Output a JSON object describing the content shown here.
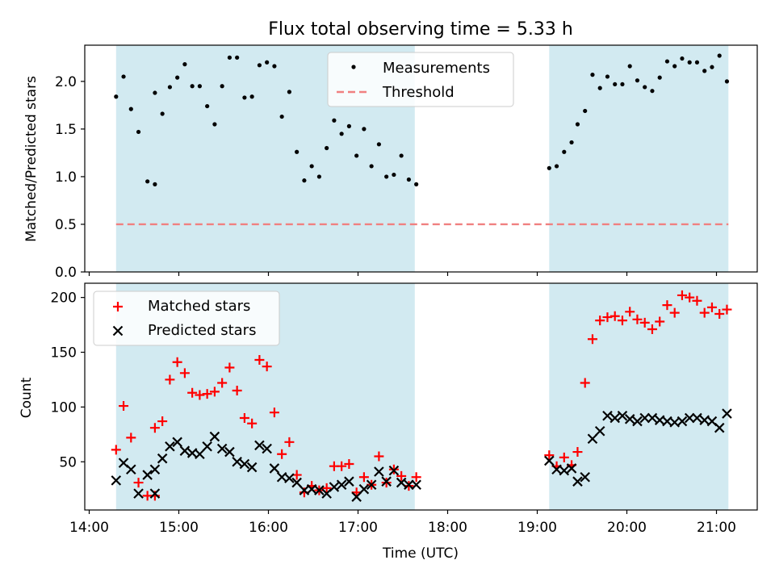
{
  "colors": {
    "shade": "#add8e6",
    "threshold": "#f08080",
    "matched": "#ff0000",
    "predicted": "#000000",
    "measurement": "#000000"
  },
  "chart_data": [
    {
      "type": "scatter",
      "title": "Flux total observing time = 5.33 h",
      "xlabel": "",
      "ylabel": "Matched/Predicted stars",
      "ylim": [
        0,
        2.38
      ],
      "yticks": [
        "0.0",
        "0.5",
        "1.0",
        "1.5",
        "2.0"
      ],
      "legend_position": "top-center",
      "shaded_intervals": [
        [
          "14:18",
          "17:38"
        ],
        [
          "19:08",
          "21:08"
        ]
      ],
      "threshold": {
        "name": "Threshold",
        "value": 0.5,
        "x_start": "14:18",
        "x_end": "21:08"
      },
      "series": [
        {
          "name": "Measurements",
          "x": [
            "14:18",
            "14:23",
            "14:28",
            "14:33",
            "14:39",
            "14:44",
            "14:49",
            "14:54",
            "14:59",
            "15:04",
            "15:09",
            "15:14",
            "15:19",
            "15:24",
            "15:29",
            "15:34",
            "15:39",
            "15:44",
            "15:49",
            "15:54",
            "15:59",
            "16:04",
            "16:09",
            "16:14",
            "16:19",
            "16:24",
            "16:29",
            "16:34",
            "16:39",
            "16:44",
            "16:49",
            "16:54",
            "16:59",
            "17:04",
            "17:09",
            "17:14",
            "17:19",
            "17:24",
            "17:29",
            "17:34",
            "17:39",
            "19:08",
            "19:13",
            "19:18",
            "19:23",
            "19:27",
            "19:32",
            "19:37",
            "19:42",
            "19:47",
            "19:52",
            "19:57",
            "20:02",
            "20:07",
            "20:12",
            "20:17",
            "20:22",
            "20:27",
            "20:32",
            "20:37",
            "20:42",
            "20:47",
            "20:52",
            "20:57",
            "21:02",
            "21:07",
            "14:44"
          ],
          "values": [
            1.84,
            2.05,
            1.71,
            1.47,
            0.95,
            1.88,
            1.66,
            1.94,
            2.04,
            2.18,
            1.95,
            1.95,
            1.74,
            1.55,
            1.95,
            2.25,
            2.25,
            1.83,
            1.84,
            2.17,
            2.2,
            2.16,
            1.63,
            1.89,
            1.26,
            0.96,
            1.11,
            1.0,
            1.3,
            1.59,
            1.45,
            1.53,
            1.22,
            1.5,
            1.11,
            1.34,
            1.0,
            1.02,
            1.22,
            0.97,
            0.92,
            1.09,
            1.11,
            1.26,
            1.36,
            1.55,
            1.69,
            2.07,
            1.93,
            2.05,
            1.97,
            1.97,
            2.16,
            2.01,
            1.94,
            1.9,
            2.04,
            2.21,
            2.16,
            2.24,
            2.2,
            2.2,
            2.11,
            2.15,
            2.27,
            2.0,
            0.92
          ]
        }
      ]
    },
    {
      "type": "scatter",
      "title": "",
      "xlabel": "Time (UTC)",
      "ylabel": "Count",
      "ylim": [
        6,
        213
      ],
      "yticks": [
        "50",
        "100",
        "150",
        "200"
      ],
      "xticks": [
        "14:00",
        "15:00",
        "16:00",
        "17:00",
        "18:00",
        "19:00",
        "20:00",
        "21:00"
      ],
      "legend_position": "top-left",
      "shaded_intervals": [
        [
          "14:18",
          "17:38"
        ],
        [
          "19:08",
          "21:08"
        ]
      ],
      "series": [
        {
          "name": "Matched stars",
          "marker": "+",
          "x": [
            "14:18",
            "14:23",
            "14:28",
            "14:33",
            "14:39",
            "14:44",
            "14:49",
            "14:54",
            "14:59",
            "15:04",
            "15:09",
            "15:14",
            "15:19",
            "15:24",
            "15:29",
            "15:34",
            "15:39",
            "15:44",
            "15:49",
            "15:54",
            "15:59",
            "16:04",
            "16:09",
            "16:14",
            "16:19",
            "16:24",
            "16:29",
            "16:34",
            "16:39",
            "16:44",
            "16:49",
            "16:54",
            "16:59",
            "17:04",
            "17:09",
            "17:14",
            "17:19",
            "17:24",
            "17:29",
            "17:34",
            "17:39",
            "19:08",
            "19:13",
            "19:18",
            "19:23",
            "19:27",
            "19:32",
            "19:37",
            "19:42",
            "19:47",
            "19:52",
            "19:57",
            "20:02",
            "20:07",
            "20:12",
            "20:17",
            "20:22",
            "20:27",
            "20:32",
            "20:37",
            "20:42",
            "20:47",
            "20:52",
            "20:57",
            "21:02",
            "21:07",
            "14:44"
          ],
          "values": [
            61,
            101,
            72,
            31,
            19,
            81,
            87,
            125,
            141,
            131,
            113,
            111,
            112,
            114,
            122,
            136,
            115,
            90,
            85,
            143,
            137,
            95,
            57,
            68,
            38,
            22,
            28,
            24,
            26,
            46,
            46,
            48,
            22,
            36,
            29,
            55,
            31,
            43,
            37,
            28,
            36,
            56,
            46,
            54,
            47,
            59,
            122,
            162,
            179,
            182,
            183,
            179,
            187,
            180,
            177,
            171,
            178,
            193,
            186,
            202,
            200,
            197,
            186,
            191,
            185,
            189,
            19
          ]
        },
        {
          "name": "Predicted stars",
          "marker": "x",
          "x": [
            "14:18",
            "14:23",
            "14:28",
            "14:33",
            "14:39",
            "14:44",
            "14:49",
            "14:54",
            "14:59",
            "15:04",
            "15:09",
            "15:14",
            "15:19",
            "15:24",
            "15:29",
            "15:34",
            "15:39",
            "15:44",
            "15:49",
            "15:54",
            "15:59",
            "16:04",
            "16:09",
            "16:14",
            "16:19",
            "16:24",
            "16:29",
            "16:34",
            "16:39",
            "16:44",
            "16:49",
            "16:54",
            "16:59",
            "17:04",
            "17:09",
            "17:14",
            "17:19",
            "17:24",
            "17:29",
            "17:34",
            "17:39",
            "19:08",
            "19:13",
            "19:18",
            "19:23",
            "19:27",
            "19:32",
            "19:37",
            "19:42",
            "19:47",
            "19:52",
            "19:57",
            "20:02",
            "20:07",
            "20:12",
            "20:17",
            "20:22",
            "20:27",
            "20:32",
            "20:37",
            "20:42",
            "20:47",
            "20:52",
            "20:57",
            "21:02",
            "21:07",
            "14:44"
          ],
          "values": [
            33,
            49,
            43,
            21,
            38,
            43,
            53,
            64,
            68,
            60,
            58,
            57,
            64,
            73,
            62,
            59,
            50,
            48,
            45,
            65,
            62,
            44,
            36,
            35,
            31,
            24,
            25,
            24,
            21,
            27,
            29,
            32,
            18,
            25,
            29,
            41,
            32,
            42,
            31,
            29,
            29,
            51,
            43,
            42,
            44,
            32,
            36,
            71,
            78,
            92,
            90,
            92,
            89,
            87,
            90,
            90,
            88,
            87,
            86,
            87,
            90,
            90,
            88,
            87,
            81,
            94,
            21
          ]
        }
      ]
    }
  ]
}
